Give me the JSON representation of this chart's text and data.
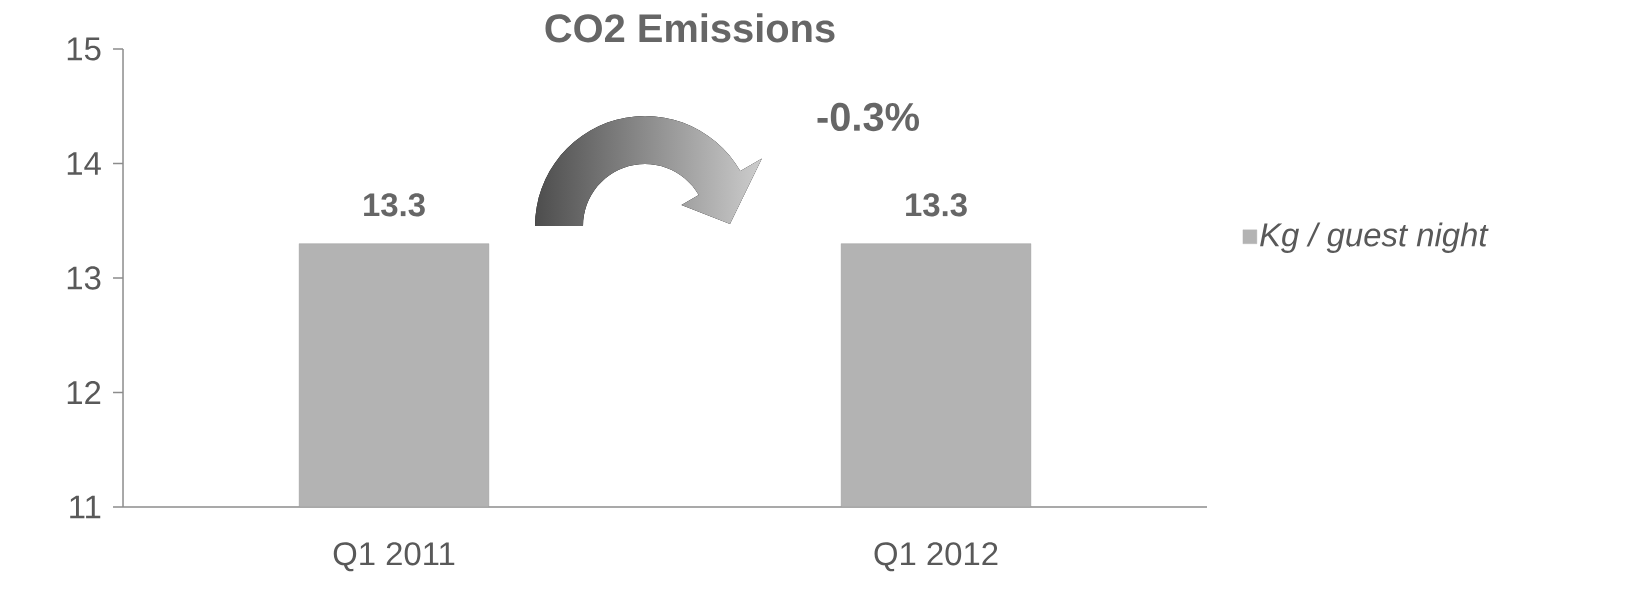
{
  "chart_data": {
    "type": "bar",
    "title": "CO2 Emissions",
    "categories": [
      "Q1 2011",
      "Q1 2012"
    ],
    "series": [
      {
        "name": "Kg / guest night",
        "color": "#b3b3b3",
        "values": [
          13.3,
          13.3
        ]
      }
    ],
    "ylim": [
      11,
      15
    ],
    "yticks": [
      11,
      12,
      13,
      14,
      15
    ],
    "data_labels": true,
    "legend": "right",
    "grid": false,
    "annotations": [
      "-0.3%"
    ]
  }
}
